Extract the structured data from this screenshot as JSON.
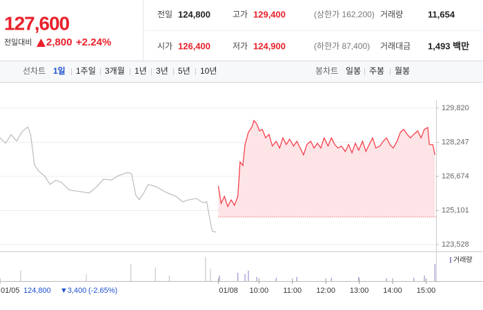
{
  "header": {
    "price": "127,600",
    "change_label": "전일대비",
    "change": "2,800",
    "change_rate": "+2.24%",
    "stats": [
      [
        {
          "label": "전일",
          "value": "124,800"
        },
        {
          "label": "고가",
          "value": "129,400",
          "note": "(상한가 162,200)"
        },
        {
          "label": "거래량",
          "value": "11,654"
        }
      ],
      [
        {
          "label": "시가",
          "value": "126,400"
        },
        {
          "label": "저가",
          "value": "124,900",
          "note": "(하한가 87,400)"
        },
        {
          "label": "거래대금",
          "value": "1,493 백만"
        }
      ]
    ]
  },
  "tabs": {
    "line_label": "선차트",
    "line_periods": [
      "1일",
      "1주일",
      "3개월",
      "1년",
      "3년",
      "5년",
      "10년"
    ],
    "candle_label": "봉차트",
    "candle_periods": [
      "일봉",
      "주봉",
      "월봉"
    ]
  },
  "chart_data": {
    "type": "line",
    "xlim": [
      0,
      783
    ],
    "ylim": [
      123210,
      130200
    ],
    "grid": true,
    "xticks": [
      {
        "value": 0,
        "label": "01/05"
      },
      {
        "value": 392,
        "label": "01/08"
      },
      {
        "value": 465,
        "label": "10:00"
      },
      {
        "value": 525,
        "label": "11:00"
      },
      {
        "value": 585,
        "label": "12:00"
      },
      {
        "value": 645,
        "label": "13:00"
      },
      {
        "value": 705,
        "label": "14:00"
      },
      {
        "value": 765,
        "label": "15:00"
      }
    ],
    "yticks": [
      {
        "value": 129820,
        "label": "129,820"
      },
      {
        "value": 128247,
        "label": "128,247"
      },
      {
        "value": 126674,
        "label": "126,674"
      },
      {
        "value": 125101,
        "label": "125,101"
      },
      {
        "value": 123528,
        "label": "123,528"
      }
    ],
    "series": [
      {
        "color": "#bbbbbb",
        "x": [
          0,
          10,
          20,
          30,
          40,
          50,
          55,
          62,
          70,
          80,
          90,
          100,
          110,
          124,
          136,
          150,
          160,
          174,
          186,
          200,
          212,
          229,
          236,
          244,
          250,
          258,
          266,
          280,
          297,
          316,
          328,
          340,
          353,
          365,
          371,
          376,
          381,
          388
        ],
        "values": [
          128450,
          128200,
          128600,
          128300,
          128750,
          128950,
          128600,
          127200,
          126900,
          126700,
          126300,
          126500,
          126400,
          126050,
          126000,
          125950,
          125900,
          126200,
          126550,
          126500,
          126700,
          126850,
          126800,
          125800,
          125600,
          125900,
          126300,
          126200,
          125950,
          125750,
          125500,
          125600,
          125650,
          125450,
          125500,
          124800,
          124150,
          124100
        ]
      },
      {
        "color": "#f5333f",
        "fill": "#fde4e6",
        "x": [
          392,
          397,
          403,
          409,
          415,
          421,
          427,
          431,
          436,
          440,
          446,
          452,
          456,
          461,
          466,
          471,
          477,
          483,
          489,
          496,
          502,
          508,
          514,
          520,
          527,
          533,
          539,
          545,
          551,
          558,
          564,
          570,
          576,
          582,
          589,
          595,
          601,
          607,
          613,
          620,
          626,
          632,
          638,
          644,
          651,
          657,
          663,
          669,
          675,
          682,
          688,
          694,
          700,
          706,
          713,
          719,
          725,
          731,
          737,
          743,
          750,
          756,
          762,
          768,
          771,
          777,
          781
        ],
        "values": [
          126230,
          125430,
          125750,
          125280,
          125590,
          125340,
          125750,
          127340,
          127180,
          128140,
          128710,
          128930,
          129250,
          129090,
          128770,
          128840,
          128450,
          128610,
          128070,
          128290,
          127980,
          128450,
          128140,
          128390,
          128070,
          128290,
          127980,
          127660,
          128140,
          128290,
          127980,
          128200,
          127980,
          128450,
          128070,
          128450,
          128140,
          127980,
          128070,
          127820,
          128140,
          127760,
          128200,
          127880,
          128290,
          127820,
          128140,
          128450,
          127980,
          128070,
          128290,
          128450,
          128140,
          127980,
          128290,
          128710,
          128840,
          128610,
          128450,
          128610,
          128770,
          128450,
          128840,
          128930,
          128140,
          128140,
          127660
        ]
      }
    ],
    "reference_line": 124800,
    "prev_day_note": {
      "close": "124,800",
      "change": "▼3,400",
      "rate": "(-2.65%)"
    },
    "volume": {
      "name": "거래량",
      "color": "#9a8fd0",
      "ylim": [
        0,
        100
      ],
      "series": [
        {
          "color": "#c8c8c8",
          "x": [
            37,
            155,
            235,
            279,
            304,
            369,
            378
          ],
          "values": [
            38,
            25,
            62,
            50,
            20,
            88,
            45
          ]
        },
        {
          "color": "#9a8fd0",
          "x": [
            394,
            427,
            440,
            446,
            461,
            496,
            533,
            595,
            644,
            694,
            743,
            762,
            781
          ],
          "values": [
            20,
            30,
            25,
            38,
            15,
            12,
            15,
            12,
            15,
            10,
            12,
            20,
            62
          ]
        }
      ]
    }
  }
}
